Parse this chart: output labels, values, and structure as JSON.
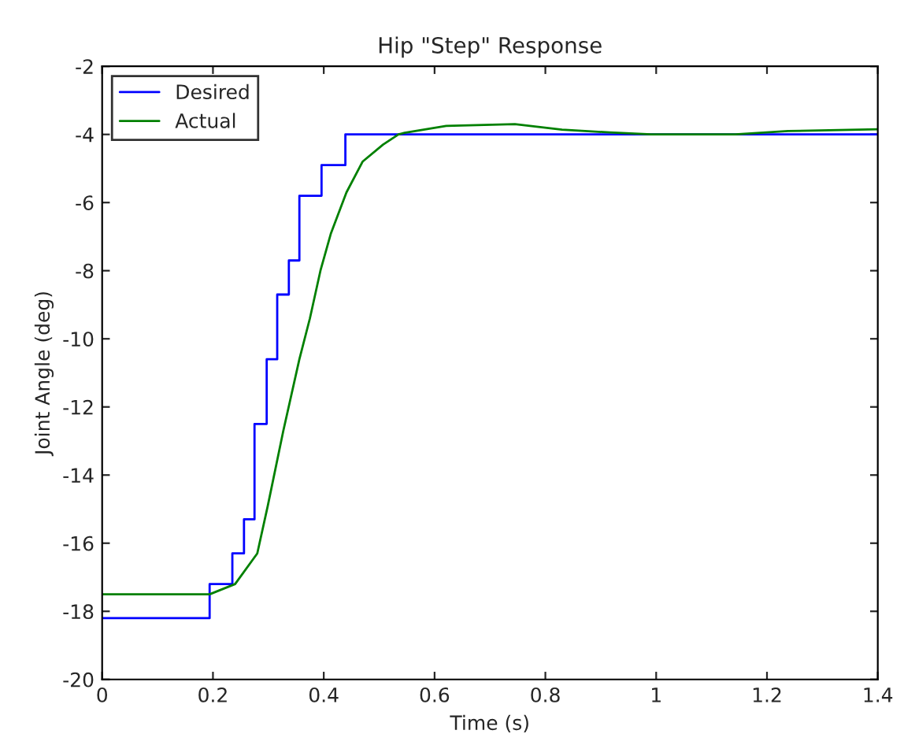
{
  "chart_data": {
    "type": "line",
    "title": "Hip \"Step\" Response",
    "xlabel": "Time (s)",
    "ylabel": "Joint Angle (deg)",
    "series": [
      {
        "name": "Desired",
        "type": "step",
        "color": "#0000ff",
        "x": [
          0,
          0.194,
          0.235,
          0.256,
          0.275,
          0.297,
          0.316,
          0.337,
          0.356,
          0.396,
          0.439,
          1.4
        ],
        "values": [
          -18.2,
          -17.2,
          -16.3,
          -15.3,
          -12.5,
          -10.6,
          -8.7,
          -7.7,
          -5.8,
          -4.9,
          -4.0,
          -4.0
        ]
      },
      {
        "name": "Actual",
        "color": "#008000",
        "x": [
          0,
          0.194,
          0.24,
          0.28,
          0.299,
          0.327,
          0.356,
          0.375,
          0.394,
          0.413,
          0.441,
          0.47,
          0.507,
          0.535,
          0.546,
          0.621,
          0.745,
          0.83,
          0.916,
          0.991,
          1.143,
          1.238,
          1.4
        ],
        "values": [
          -17.5,
          -17.5,
          -17.2,
          -16.3,
          -14.9,
          -12.7,
          -10.6,
          -9.4,
          -8.0,
          -6.9,
          -5.7,
          -4.8,
          -4.3,
          -4.0,
          -3.95,
          -3.75,
          -3.7,
          -3.86,
          -3.94,
          -4.0,
          -4.0,
          -3.9,
          -3.85
        ]
      }
    ],
    "xlim": [
      0,
      1.4
    ],
    "xticks": [
      0,
      0.2,
      0.4,
      0.6,
      0.8,
      1,
      1.2,
      1.4
    ],
    "ylim": [
      -20,
      -2
    ],
    "yticks": [
      -20,
      -18,
      -16,
      -14,
      -12,
      -10,
      -8,
      -6,
      -4,
      -2
    ],
    "legend": "top left",
    "grid": false
  }
}
